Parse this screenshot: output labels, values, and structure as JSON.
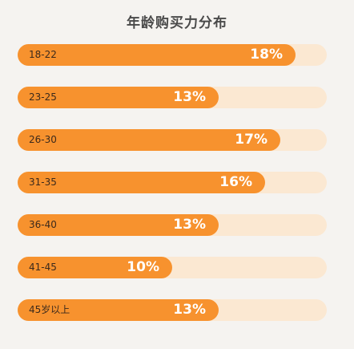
{
  "chart_data": {
    "type": "bar",
    "orientation": "horizontal",
    "title": "年龄购买力分布",
    "categories": [
      "18-22",
      "23-25",
      "26-30",
      "31-35",
      "36-40",
      "41-45",
      "45岁以上"
    ],
    "values": [
      18,
      13,
      17,
      16,
      13,
      10,
      13
    ],
    "value_labels": [
      "18%",
      "13%",
      "17%",
      "16%",
      "13%",
      "10%",
      "13%"
    ],
    "xlim": [
      0,
      20
    ],
    "unit": "%",
    "grid": false,
    "colors": {
      "fill": "#f7922e",
      "track": "#fbe8d2",
      "background": "#f5f3f0"
    }
  }
}
